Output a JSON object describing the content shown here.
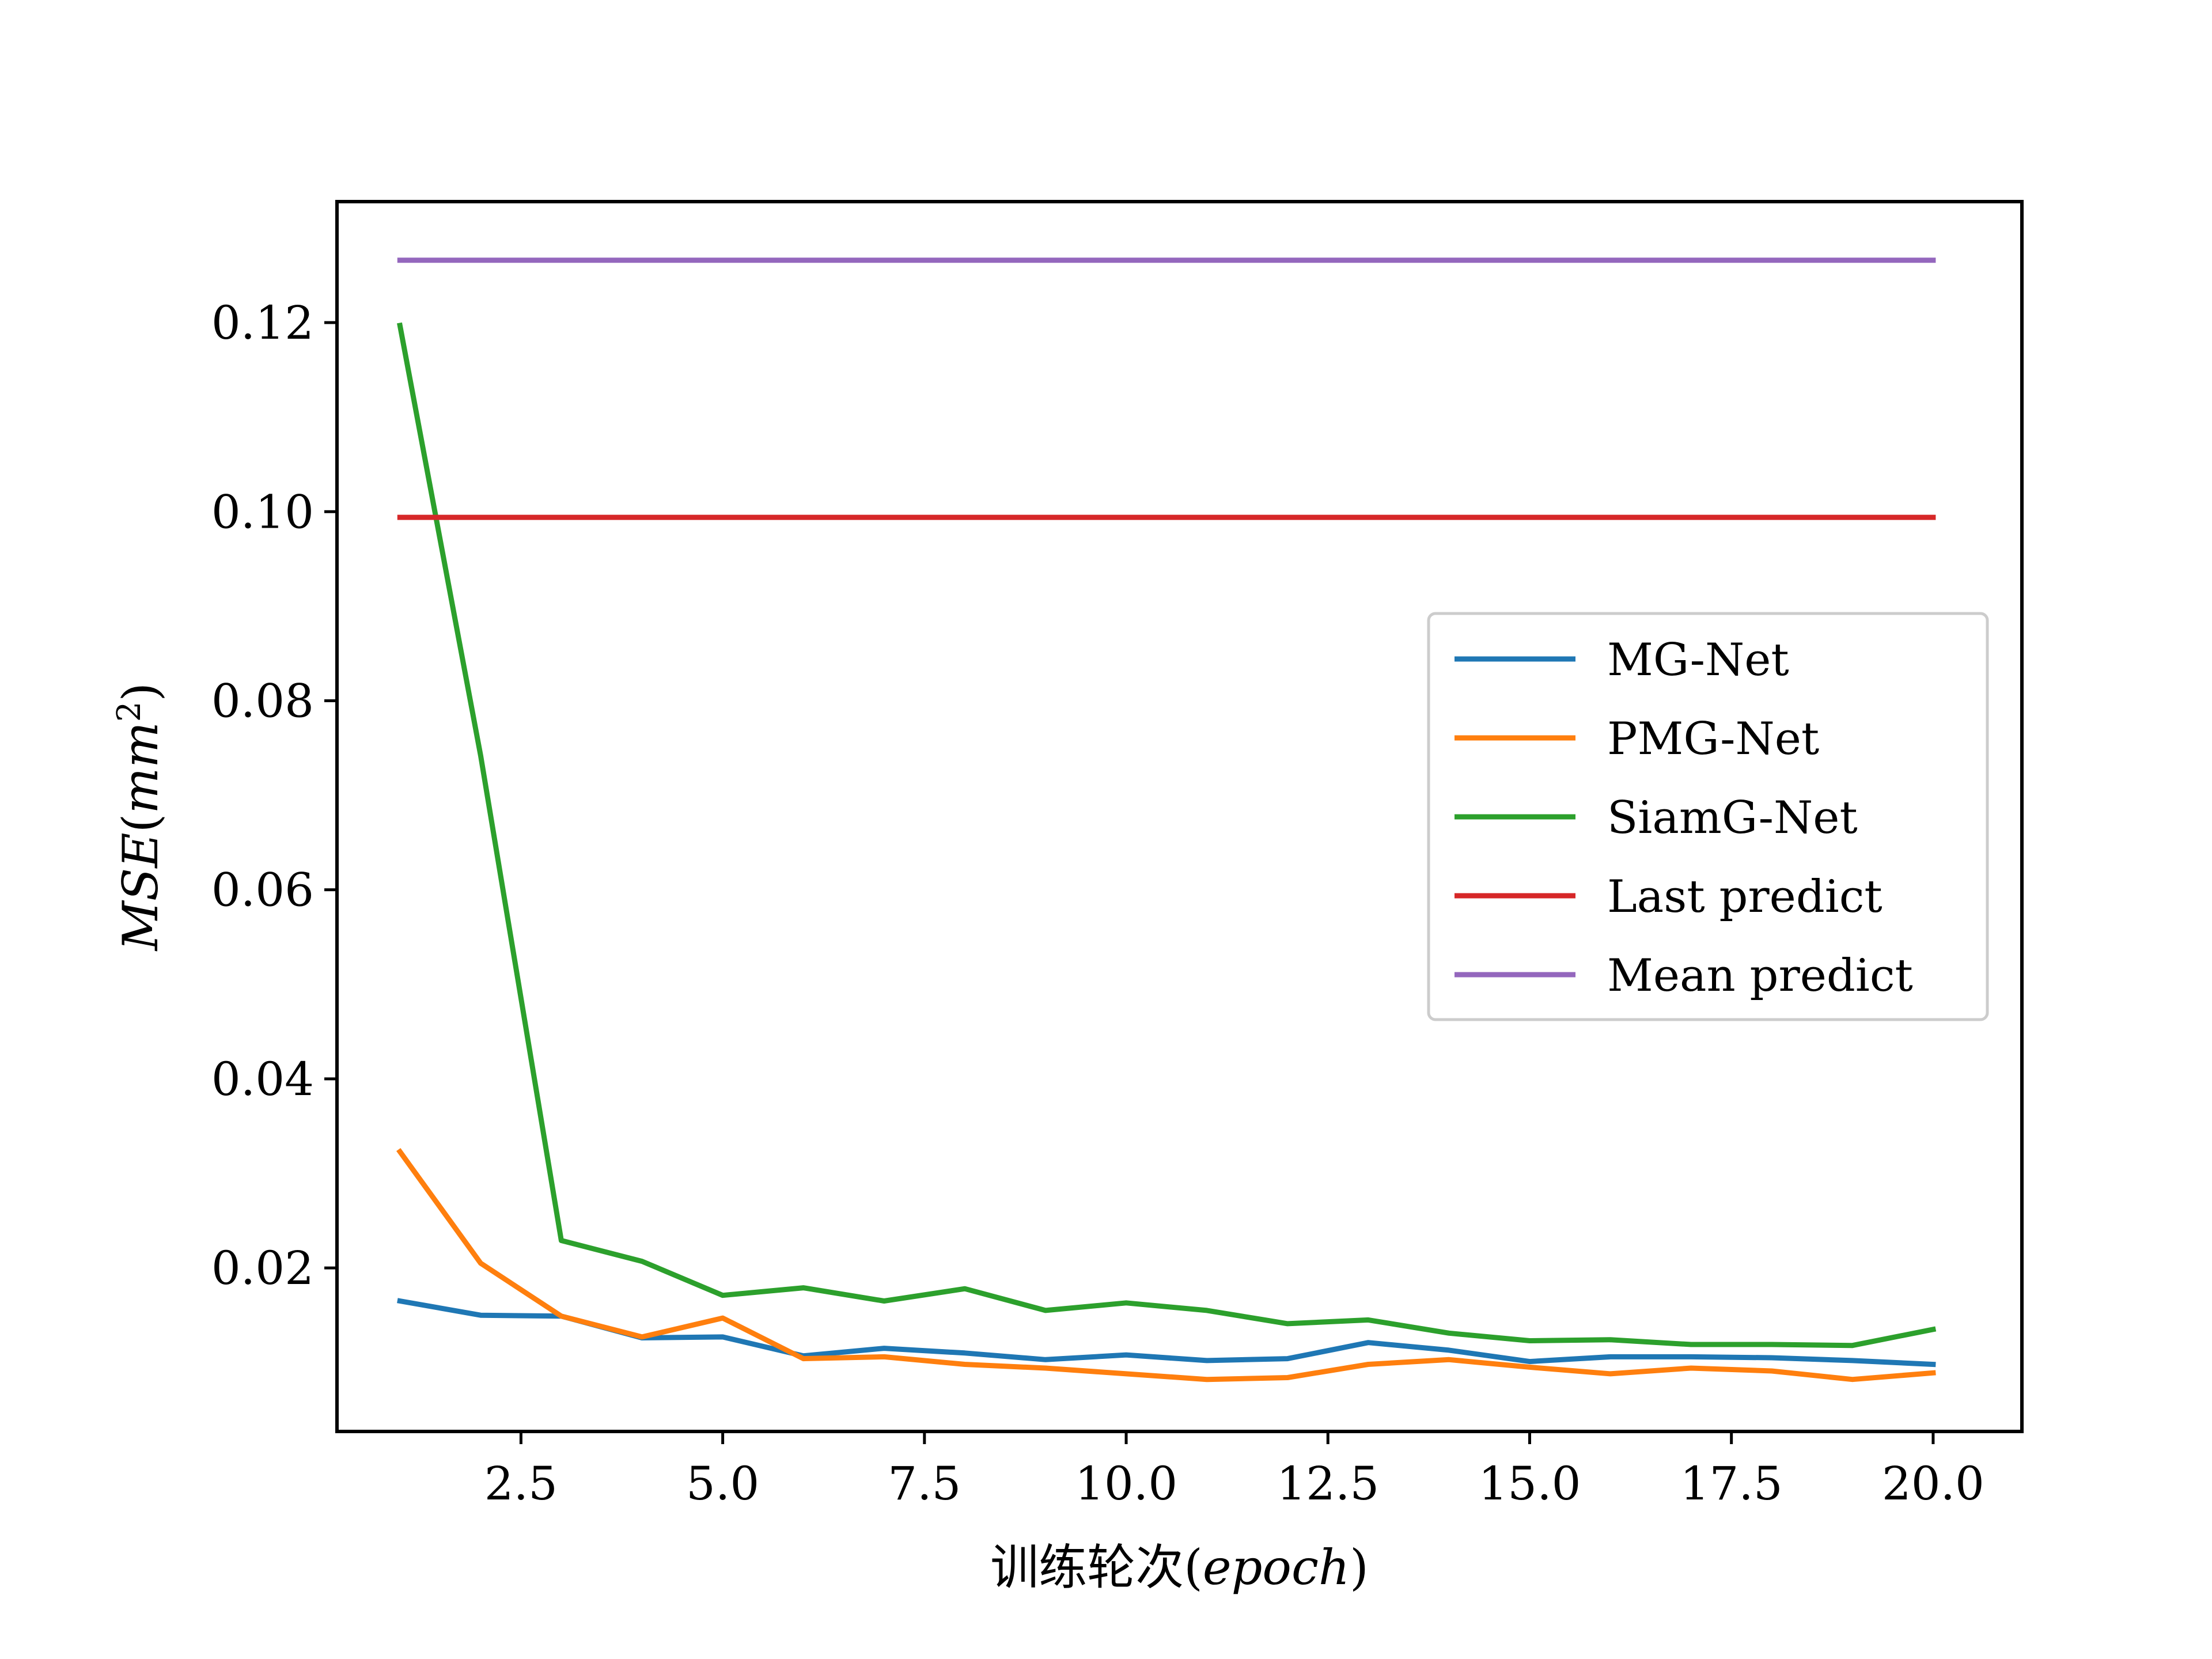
{
  "chart_data": {
    "type": "line",
    "title": "",
    "xlabel": "训练轮次(epoch)",
    "xlabel_main": "训练轮次(",
    "xlabel_unit": "epoch",
    "xlabel_close": ")",
    "ylabel_main": "MSE",
    "ylabel_open": "(",
    "ylabel_unit": "mm",
    "ylabel_exp": "2",
    "ylabel_close": ")",
    "xlim": [
      0.22,
      21.1
    ],
    "ylim": [
      0.0027,
      0.1328
    ],
    "x_ticks": [
      2.5,
      5.0,
      7.5,
      10.0,
      12.5,
      15.0,
      17.5,
      20.0
    ],
    "x_tick_labels": [
      "2.5",
      "5.0",
      "7.5",
      "10.0",
      "12.5",
      "15.0",
      "17.5",
      "20.0"
    ],
    "y_ticks": [
      0.02,
      0.04,
      0.06,
      0.08,
      0.1,
      0.12
    ],
    "y_tick_labels": [
      "0.02",
      "0.04",
      "0.06",
      "0.08",
      "0.10",
      "0.12"
    ],
    "grid": false,
    "legend_position": "center-right",
    "x": [
      1,
      2,
      3,
      4,
      5,
      6,
      7,
      8,
      9,
      10,
      11,
      12,
      13,
      14,
      15,
      16,
      17,
      18,
      19,
      20
    ],
    "series": [
      {
        "name": "MG-Net",
        "color": "#1f77b4",
        "values": [
          0.0165,
          0.015,
          0.0149,
          0.0126,
          0.0127,
          0.0107,
          0.0115,
          0.011,
          0.0103,
          0.0108,
          0.0102,
          0.0104,
          0.0121,
          0.0113,
          0.0101,
          0.0106,
          0.0106,
          0.0105,
          0.0102,
          0.0098
        ]
      },
      {
        "name": "PMG-Net",
        "color": "#ff7f0e",
        "values": [
          0.0323,
          0.0205,
          0.0149,
          0.0127,
          0.0147,
          0.0104,
          0.0106,
          0.0098,
          0.0094,
          0.0088,
          0.0082,
          0.0084,
          0.0098,
          0.0103,
          0.0095,
          0.0088,
          0.0094,
          0.0091,
          0.0082,
          0.0089
        ]
      },
      {
        "name": "SiamG-Net",
        "color": "#2ca02c",
        "values": [
          0.1197,
          0.0742,
          0.0229,
          0.0207,
          0.0171,
          0.0179,
          0.0165,
          0.0178,
          0.0155,
          0.0163,
          0.0155,
          0.0141,
          0.0145,
          0.0131,
          0.0123,
          0.0124,
          0.0119,
          0.0119,
          0.0118,
          0.0135
        ]
      },
      {
        "name": "Last predict",
        "color": "#d62728",
        "values": [
          0.0994,
          0.0994,
          0.0994,
          0.0994,
          0.0994,
          0.0994,
          0.0994,
          0.0994,
          0.0994,
          0.0994,
          0.0994,
          0.0994,
          0.0994,
          0.0994,
          0.0994,
          0.0994,
          0.0994,
          0.0994,
          0.0994,
          0.0994
        ]
      },
      {
        "name": "Mean predict",
        "color": "#9467bd",
        "values": [
          0.1266,
          0.1266,
          0.1266,
          0.1266,
          0.1266,
          0.1266,
          0.1266,
          0.1266,
          0.1266,
          0.1266,
          0.1266,
          0.1266,
          0.1266,
          0.1266,
          0.1266,
          0.1266,
          0.1266,
          0.1266,
          0.1266,
          0.1266
        ]
      }
    ]
  }
}
